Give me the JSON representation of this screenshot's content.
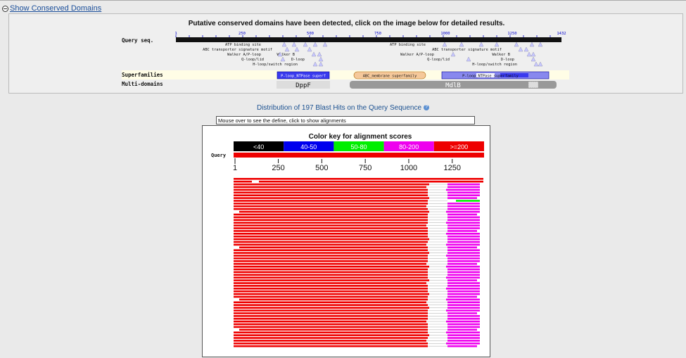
{
  "header": {
    "show_cd_label": "Show Conserved Domains"
  },
  "cd": {
    "title": "Putative conserved domains have been detected, click on the image below for detailed results.",
    "query_label": "Query seq.",
    "ticks": [
      "1",
      "250",
      "500",
      "750",
      "1000",
      "1250",
      "1432"
    ],
    "annotations": [
      {
        "label": "ATP binding site"
      },
      {
        "label": "ABC transporter signature motif"
      },
      {
        "label": "Walker A/P-loop"
      },
      {
        "label": "Walker B"
      },
      {
        "label": "Q-loop/lid"
      },
      {
        "label": "D-loop"
      },
      {
        "label": "H-loop/switch region"
      },
      {
        "label": "ATP binding site"
      },
      {
        "label": "ABC transporter signature motif"
      },
      {
        "label": "Walker A/P-loop"
      },
      {
        "label": "Walker B"
      },
      {
        "label": "Q-loop/lid"
      },
      {
        "label": "D-loop"
      },
      {
        "label": "H-loop/switch region"
      }
    ],
    "superfamilies_label": "Superfamilies",
    "superfamilies": [
      {
        "label": "P-loop_NTPase superf"
      },
      {
        "label": "ABC_membrane superfamily"
      },
      {
        "label": "P-loop_NTPase superfamily"
      }
    ],
    "multidomains_label": "Multi-domains",
    "multidomains": [
      {
        "label": "DppF"
      },
      {
        "label": "MdlB"
      }
    ],
    "colors": {
      "ntpase": "#3333ee",
      "membrane": "#f5c89a",
      "multi": "#999999",
      "dppf": "#dddddd"
    }
  },
  "distribution": {
    "title": "Distribution of 197 Blast Hits on the Query Sequence",
    "help_icon": "?",
    "mouseover_text": "Mouse over to see the define, click to show alignments"
  },
  "colorkey": {
    "title": "Color key for alignment scores",
    "bins": [
      {
        "label": "<40",
        "color": "#000000"
      },
      {
        "label": "40-50",
        "color": "#0000ee"
      },
      {
        "label": "50-80",
        "color": "#00ee00"
      },
      {
        "label": "80-200",
        "color": "#ee00ee"
      },
      {
        "label": ">=200",
        "color": "#ee0000"
      }
    ],
    "query_label": "Query",
    "ticks": [
      "1",
      "250",
      "500",
      "750",
      "1000",
      "1250"
    ]
  }
}
